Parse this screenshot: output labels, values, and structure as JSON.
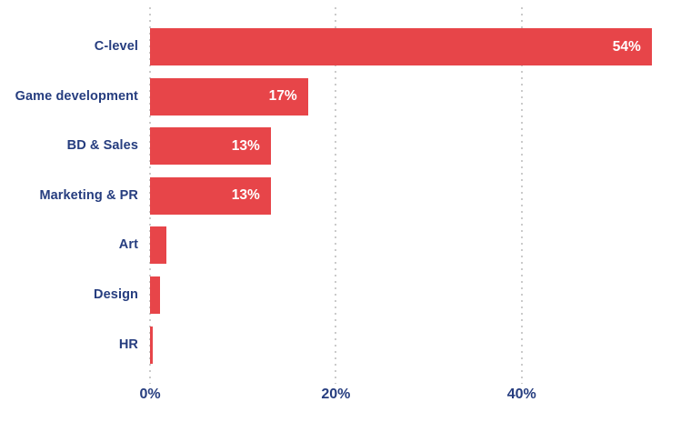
{
  "chart_data": {
    "type": "bar",
    "orientation": "horizontal",
    "title": "",
    "xlabel": "",
    "ylabel": "",
    "categories": [
      "C-level",
      "Game development",
      "BD & Sales",
      "Marketing & PR",
      "Art",
      "Design",
      "HR"
    ],
    "values": [
      54,
      17,
      13,
      13,
      1.8,
      1.1,
      0.3
    ],
    "value_labels": [
      "54%",
      "17%",
      "13%",
      "13%",
      "",
      "",
      ""
    ],
    "x_ticks": [
      {
        "value": 0,
        "label": "0%"
      },
      {
        "value": 20,
        "label": "20%"
      },
      {
        "value": 40,
        "label": "40%"
      }
    ],
    "xlim": [
      0,
      57.15
    ],
    "grid": "dotted-vertical",
    "legend": "none",
    "colors": {
      "bar": "#E74549",
      "category_text": "#263D7F",
      "tick_text": "#263D7F",
      "value_text": "#FFFFFF",
      "gridline": "#CBCBCB",
      "background": "#FFFFFF"
    }
  }
}
